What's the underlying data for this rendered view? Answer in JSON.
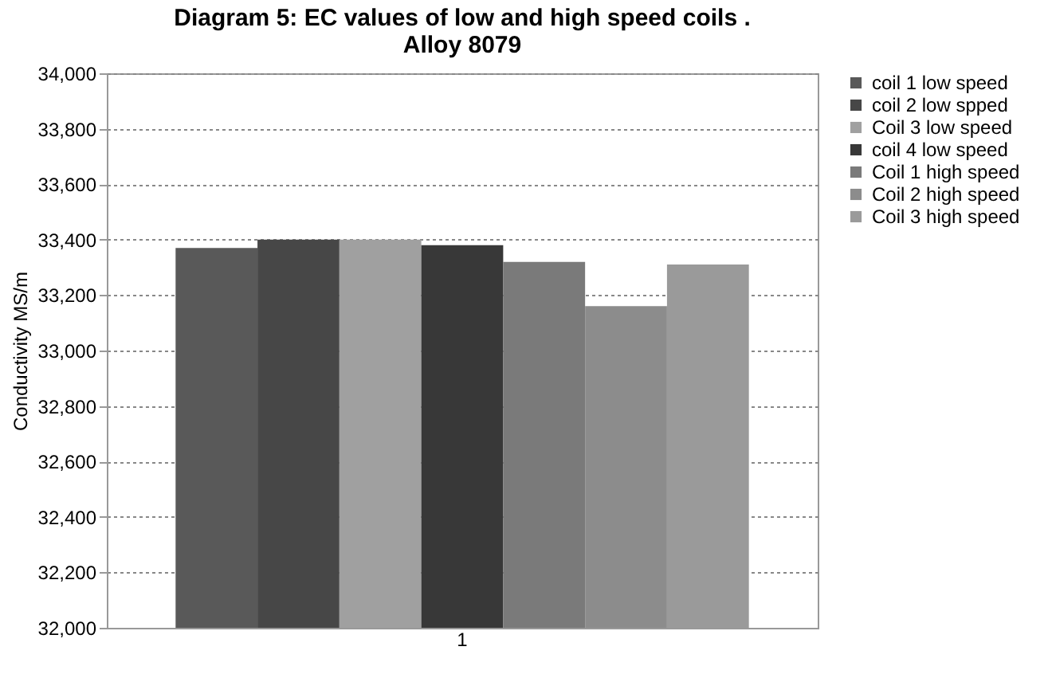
{
  "chart_data": {
    "type": "bar",
    "title": "Diagram 5: EC values of low and high speed coils .\nAlloy 8079",
    "ylabel": "Conductivity MS/m",
    "categories": [
      "1"
    ],
    "series": [
      {
        "name": "coil 1 low  speed",
        "color": "#595959",
        "values": [
          33370
        ]
      },
      {
        "name": "coil 2 low  spped",
        "color": "#474747",
        "values": [
          33400
        ]
      },
      {
        "name": "Coil 3 low speed",
        "color": "#a0a0a0",
        "values": [
          33400
        ]
      },
      {
        "name": "coil 4 low speed",
        "color": "#383838",
        "values": [
          33380
        ]
      },
      {
        "name": "Coil 1 high speed",
        "color": "#7a7a7a",
        "values": [
          33320
        ]
      },
      {
        "name": "Coil 2 high  speed",
        "color": "#8c8c8c",
        "values": [
          33160
        ]
      },
      {
        "name": "Coil 3 high speed",
        "color": "#9a9a9a",
        "values": [
          33310
        ]
      }
    ],
    "ylim": [
      32000,
      34000
    ],
    "yticks": [
      {
        "value": 32000,
        "label": "32,000"
      },
      {
        "value": 32200,
        "label": "32,200"
      },
      {
        "value": 32400,
        "label": "32,400"
      },
      {
        "value": 32600,
        "label": "32,600"
      },
      {
        "value": 32800,
        "label": "32,800"
      },
      {
        "value": 33000,
        "label": "33,000"
      },
      {
        "value": 33200,
        "label": "33,200"
      },
      {
        "value": 33400,
        "label": "33,400"
      },
      {
        "value": 33600,
        "label": "33,600"
      },
      {
        "value": 33800,
        "label": "33,800"
      },
      {
        "value": 34000,
        "label": "34,000"
      }
    ],
    "grid": "y",
    "legend": "right"
  }
}
